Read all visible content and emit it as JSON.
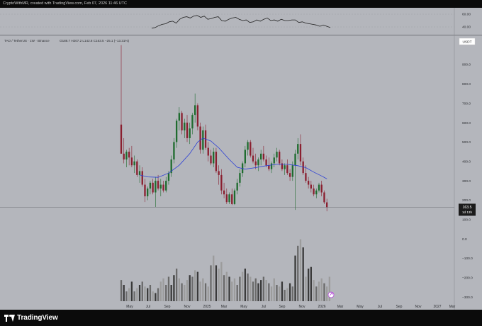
{
  "header": {
    "text": "CryptoWithMR, created with TradingView.com, Feb 07, 2026 11:46 UTC"
  },
  "symbol": {
    "title": "TAO / TetherUS · 1W · Binance",
    "ohlc": "O188.7  H207.2  L142.8  C163.5  −25.1 (−13.31%)",
    "currency_badge": "USDT"
  },
  "last_price": {
    "value": "163.5",
    "countdown": "1d 13h"
  },
  "branding": {
    "logo_text": "TradingView"
  },
  "colors": {
    "pane_background": "#b4b6bc",
    "up_candle": "#1e6b2e",
    "down_candle": "#8a1f2f",
    "moving_average": "#2b3fd6",
    "oscillator_line": "#222222",
    "volume_dark": "#3a3a3a",
    "volume_mid": "#6a6a6a",
    "volume_light": "#9c9c9c"
  },
  "chart_data": {
    "type": "candlestick",
    "price_axis": {
      "ticks": [
        900.0,
        800.0,
        700.0,
        600.0,
        500.0,
        400.0,
        300.0,
        200.0,
        100.0,
        0.0,
        -100.0,
        -200.0,
        -300.0
      ],
      "range": [
        -310,
        1020
      ]
    },
    "oscillator_axis": {
      "ticks": [
        60.0,
        40.0
      ],
      "range": [
        23,
        73
      ]
    },
    "time_axis": [
      "May",
      "Jul",
      "Sep",
      "Nov",
      "2025",
      "Mar",
      "May",
      "Jul",
      "Sep",
      "Nov",
      "2026",
      "Mar",
      "May",
      "Jul",
      "Sep",
      "Nov",
      "2027",
      "Mar"
    ],
    "candles": [
      {
        "o": 590,
        "h": 1000,
        "l": 440,
        "c": 440
      },
      {
        "o": 440,
        "h": 520,
        "l": 390,
        "c": 410
      },
      {
        "o": 410,
        "h": 460,
        "l": 370,
        "c": 450
      },
      {
        "o": 450,
        "h": 470,
        "l": 380,
        "c": 420
      },
      {
        "o": 420,
        "h": 480,
        "l": 370,
        "c": 380
      },
      {
        "o": 380,
        "h": 430,
        "l": 340,
        "c": 400
      },
      {
        "o": 400,
        "h": 410,
        "l": 320,
        "c": 330
      },
      {
        "o": 330,
        "h": 380,
        "l": 290,
        "c": 350
      },
      {
        "o": 350,
        "h": 370,
        "l": 270,
        "c": 280
      },
      {
        "o": 280,
        "h": 310,
        "l": 190,
        "c": 220
      },
      {
        "o": 220,
        "h": 270,
        "l": 200,
        "c": 260
      },
      {
        "o": 260,
        "h": 300,
        "l": 230,
        "c": 290
      },
      {
        "o": 290,
        "h": 310,
        "l": 230,
        "c": 240
      },
      {
        "o": 240,
        "h": 320,
        "l": 165,
        "c": 300
      },
      {
        "o": 300,
        "h": 330,
        "l": 250,
        "c": 260
      },
      {
        "o": 260,
        "h": 310,
        "l": 220,
        "c": 280
      },
      {
        "o": 280,
        "h": 300,
        "l": 240,
        "c": 250
      },
      {
        "o": 250,
        "h": 320,
        "l": 240,
        "c": 300
      },
      {
        "o": 300,
        "h": 350,
        "l": 280,
        "c": 340
      },
      {
        "o": 340,
        "h": 430,
        "l": 320,
        "c": 410
      },
      {
        "o": 410,
        "h": 520,
        "l": 390,
        "c": 500
      },
      {
        "o": 500,
        "h": 620,
        "l": 470,
        "c": 610
      },
      {
        "o": 610,
        "h": 680,
        "l": 560,
        "c": 650
      },
      {
        "o": 650,
        "h": 660,
        "l": 540,
        "c": 560
      },
      {
        "o": 560,
        "h": 620,
        "l": 520,
        "c": 600
      },
      {
        "o": 600,
        "h": 640,
        "l": 500,
        "c": 520
      },
      {
        "o": 520,
        "h": 600,
        "l": 490,
        "c": 570
      },
      {
        "o": 570,
        "h": 650,
        "l": 540,
        "c": 640
      },
      {
        "o": 640,
        "h": 750,
        "l": 600,
        "c": 690
      },
      {
        "o": 690,
        "h": 700,
        "l": 560,
        "c": 580
      },
      {
        "o": 580,
        "h": 600,
        "l": 440,
        "c": 460
      },
      {
        "o": 460,
        "h": 580,
        "l": 440,
        "c": 560
      },
      {
        "o": 560,
        "h": 590,
        "l": 460,
        "c": 470
      },
      {
        "o": 470,
        "h": 500,
        "l": 400,
        "c": 430
      },
      {
        "o": 430,
        "h": 460,
        "l": 380,
        "c": 390
      },
      {
        "o": 390,
        "h": 470,
        "l": 370,
        "c": 450
      },
      {
        "o": 450,
        "h": 470,
        "l": 340,
        "c": 350
      },
      {
        "o": 350,
        "h": 380,
        "l": 280,
        "c": 330
      },
      {
        "o": 330,
        "h": 360,
        "l": 230,
        "c": 250
      },
      {
        "o": 250,
        "h": 290,
        "l": 210,
        "c": 230
      },
      {
        "o": 230,
        "h": 260,
        "l": 180,
        "c": 190
      },
      {
        "o": 190,
        "h": 240,
        "l": 180,
        "c": 230
      },
      {
        "o": 230,
        "h": 260,
        "l": 175,
        "c": 180
      },
      {
        "o": 180,
        "h": 260,
        "l": 175,
        "c": 250
      },
      {
        "o": 250,
        "h": 310,
        "l": 230,
        "c": 290
      },
      {
        "o": 290,
        "h": 360,
        "l": 270,
        "c": 340
      },
      {
        "o": 340,
        "h": 400,
        "l": 320,
        "c": 390
      },
      {
        "o": 390,
        "h": 480,
        "l": 370,
        "c": 460
      },
      {
        "o": 460,
        "h": 510,
        "l": 430,
        "c": 500
      },
      {
        "o": 500,
        "h": 510,
        "l": 420,
        "c": 430
      },
      {
        "o": 430,
        "h": 470,
        "l": 390,
        "c": 400
      },
      {
        "o": 400,
        "h": 440,
        "l": 360,
        "c": 380
      },
      {
        "o": 380,
        "h": 420,
        "l": 350,
        "c": 410
      },
      {
        "o": 410,
        "h": 460,
        "l": 380,
        "c": 440
      },
      {
        "o": 440,
        "h": 480,
        "l": 400,
        "c": 410
      },
      {
        "o": 410,
        "h": 430,
        "l": 370,
        "c": 380
      },
      {
        "o": 380,
        "h": 420,
        "l": 350,
        "c": 360
      },
      {
        "o": 360,
        "h": 400,
        "l": 340,
        "c": 390
      },
      {
        "o": 390,
        "h": 440,
        "l": 370,
        "c": 420
      },
      {
        "o": 420,
        "h": 470,
        "l": 400,
        "c": 450
      },
      {
        "o": 450,
        "h": 460,
        "l": 380,
        "c": 390
      },
      {
        "o": 390,
        "h": 410,
        "l": 350,
        "c": 360
      },
      {
        "o": 360,
        "h": 390,
        "l": 330,
        "c": 380
      },
      {
        "o": 380,
        "h": 410,
        "l": 330,
        "c": 340
      },
      {
        "o": 340,
        "h": 360,
        "l": 300,
        "c": 320
      },
      {
        "o": 320,
        "h": 400,
        "l": 300,
        "c": 380
      },
      {
        "o": 380,
        "h": 460,
        "l": 150,
        "c": 440
      },
      {
        "o": 440,
        "h": 520,
        "l": 410,
        "c": 490
      },
      {
        "o": 490,
        "h": 540,
        "l": 380,
        "c": 400
      },
      {
        "o": 400,
        "h": 420,
        "l": 330,
        "c": 340
      },
      {
        "o": 340,
        "h": 380,
        "l": 290,
        "c": 300
      },
      {
        "o": 300,
        "h": 320,
        "l": 260,
        "c": 280
      },
      {
        "o": 280,
        "h": 300,
        "l": 240,
        "c": 260
      },
      {
        "o": 260,
        "h": 280,
        "l": 220,
        "c": 230
      },
      {
        "o": 230,
        "h": 260,
        "l": 210,
        "c": 250
      },
      {
        "o": 250,
        "h": 290,
        "l": 240,
        "c": 280
      },
      {
        "o": 280,
        "h": 300,
        "l": 220,
        "c": 240
      },
      {
        "o": 240,
        "h": 250,
        "l": 180,
        "c": 189
      },
      {
        "o": 188.7,
        "h": 207.2,
        "l": 142.8,
        "c": 163.5
      }
    ],
    "moving_average": [
      [
        7,
        330
      ],
      [
        10,
        320
      ],
      [
        14,
        318
      ],
      [
        18,
        340
      ],
      [
        22,
        380
      ],
      [
        26,
        440
      ],
      [
        29,
        500
      ],
      [
        31,
        520
      ],
      [
        34,
        505
      ],
      [
        37,
        470
      ],
      [
        41,
        410
      ],
      [
        44,
        370
      ],
      [
        47,
        360
      ],
      [
        51,
        368
      ],
      [
        55,
        378
      ],
      [
        59,
        385
      ],
      [
        63,
        385
      ],
      [
        67,
        378
      ],
      [
        70,
        368
      ],
      [
        73,
        345
      ],
      [
        76,
        325
      ],
      [
        78,
        310
      ]
    ],
    "volume": [
      130,
      100,
      60,
      80,
      120,
      60,
      80,
      100,
      120,
      90,
      80,
      100,
      60,
      50,
      80,
      120,
      140,
      100,
      150,
      100,
      160,
      200,
      140,
      110,
      100,
      130,
      160,
      150,
      190,
      180,
      120,
      140,
      110,
      90,
      220,
      280,
      220,
      200,
      240,
      160,
      180,
      150,
      120,
      140,
      100,
      150,
      180,
      200,
      170,
      150,
      120,
      140,
      110,
      130,
      150,
      130,
      110,
      90,
      140,
      100,
      90,
      120,
      70,
      80,
      110,
      90,
      280,
      340,
      380,
      330,
      150,
      200,
      210,
      130,
      90,
      120,
      140,
      110,
      90,
      150
    ],
    "oscillator": [
      38,
      39,
      42,
      44,
      45,
      48,
      49,
      46,
      52,
      55,
      56,
      54,
      57,
      58,
      55,
      57,
      52,
      53,
      55,
      56,
      50,
      49,
      52,
      54,
      55,
      52,
      50,
      51,
      47,
      48,
      51,
      49,
      52,
      54,
      50,
      51,
      49,
      52,
      50,
      50,
      51,
      51,
      47,
      48,
      46,
      45,
      44,
      43,
      41,
      43,
      41,
      39
    ]
  }
}
